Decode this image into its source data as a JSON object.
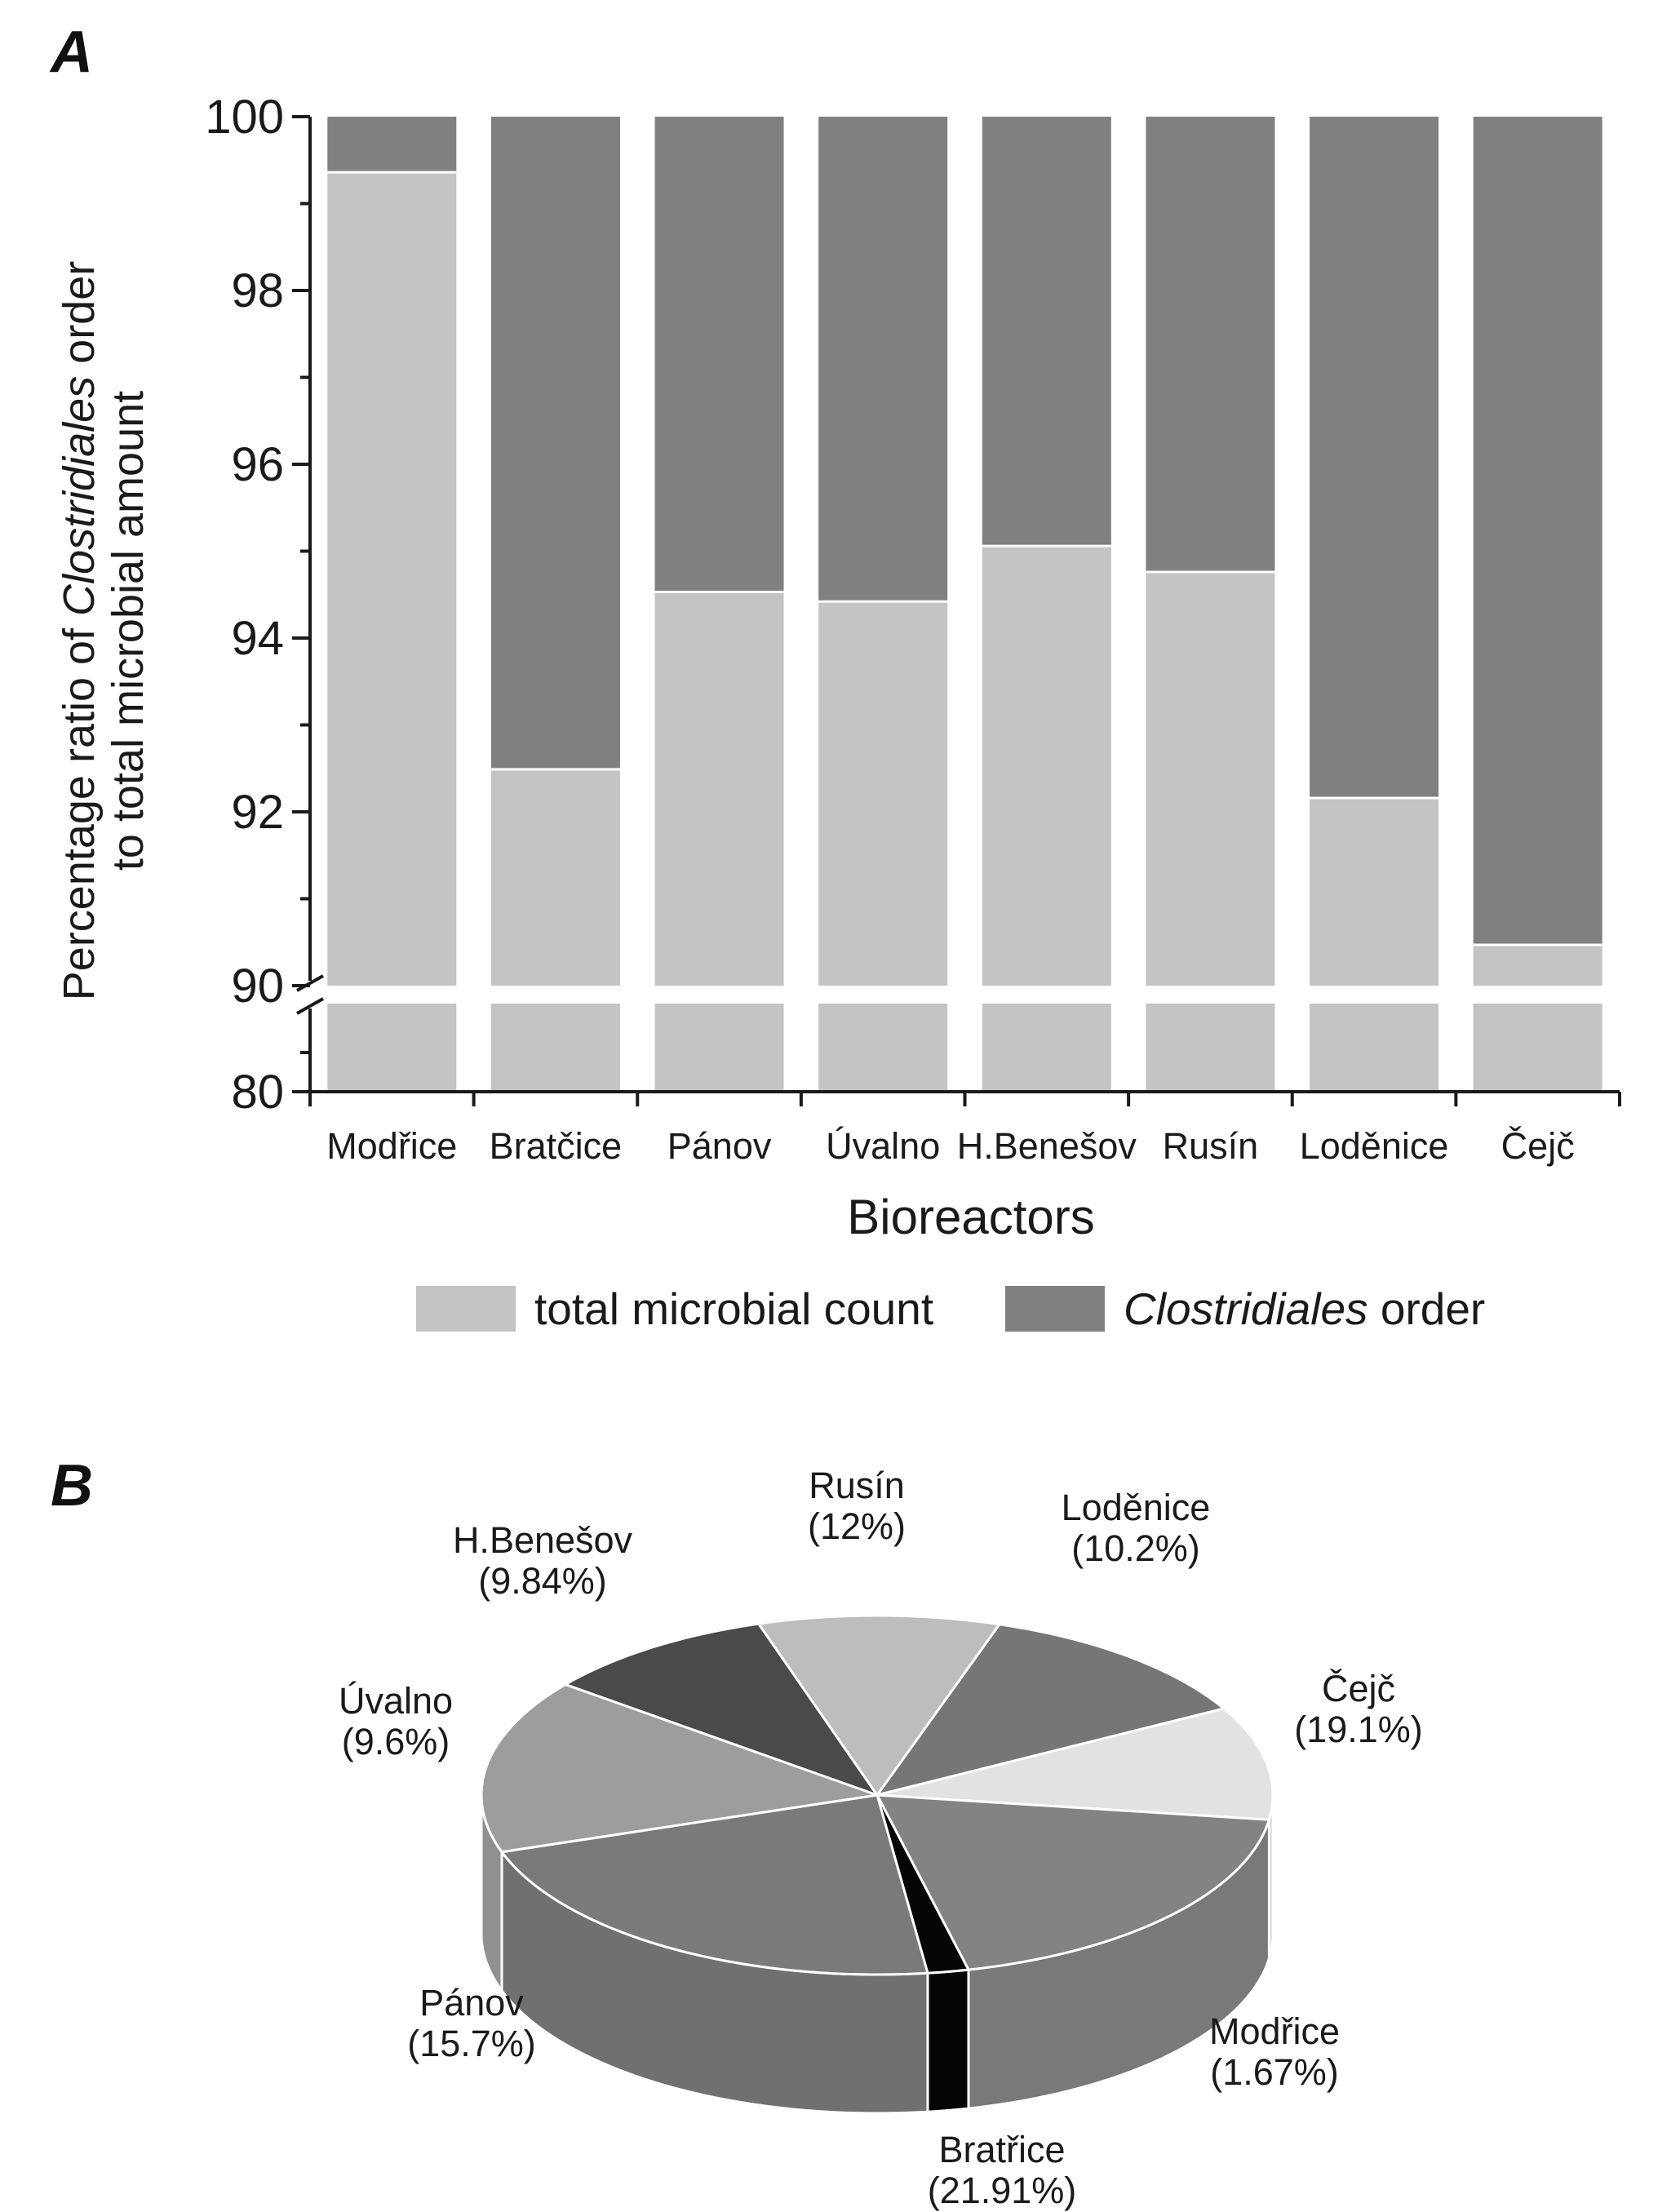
{
  "colors": {
    "total": "#c4c4c4",
    "clostridiales": "#808080",
    "axis": "#1a1a1a",
    "background": "#ffffff"
  },
  "panel_a_label": "A",
  "panel_b_label": "B",
  "chart_data": [
    {
      "type": "bar",
      "stacked": true,
      "title": "",
      "xlabel": "Bioreactors",
      "ylabel_parts": [
        "Percentage ratio of ",
        "Clostridiales",
        " order",
        "to total microbial amount"
      ],
      "categories": [
        "Modřice",
        "Bratčice",
        "Pánov",
        "Úvalno",
        "H.Benešov",
        "Rusín",
        "Loděnice",
        "Čejč"
      ],
      "ylim_upper": [
        90,
        100
      ],
      "ylim_lower": [
        80,
        90
      ],
      "axis_break_between": [
        80,
        90
      ],
      "yticks_upper": [
        "90",
        "92",
        "94",
        "96",
        "98",
        "100"
      ],
      "ytick_lower": "80",
      "series": [
        {
          "name": "total microbial count",
          "values": [
            99.36,
            92.49,
            94.53,
            94.42,
            95.06,
            94.76,
            92.16,
            90.47
          ]
        },
        {
          "name": "Clostridiales order",
          "values": [
            0.64,
            7.51,
            5.47,
            5.58,
            4.94,
            5.24,
            7.84,
            9.53
          ]
        }
      ],
      "legend": [
        {
          "text": "total microbial count"
        },
        {
          "text_italic": "Clostridiales",
          "text": " order"
        }
      ],
      "legend_position": "bottom"
    },
    {
      "type": "pie",
      "style": "3d",
      "slices": [
        {
          "name": "Rusín",
          "label": "(12%)",
          "value": 12,
          "color": "#767676"
        },
        {
          "name": "Loděnice",
          "label": "(10.2%)",
          "value": 10.2,
          "color": "#e2e2e2"
        },
        {
          "name": "Čejč",
          "label": "(19.1%)",
          "value": 19.1,
          "color": "#838383"
        },
        {
          "name": "Modřice",
          "label": "(1.67%)",
          "value": 1.67,
          "color": "#050505"
        },
        {
          "name": "Bratřice",
          "label": "(21.91%)",
          "value": 21.91,
          "color": "#7a7a7a"
        },
        {
          "name": "Pánov",
          "label": "(15.7%)",
          "value": 15.7,
          "color": "#9d9d9d"
        },
        {
          "name": "Úvalno",
          "label": "(9.6%)",
          "value": 9.6,
          "color": "#4a4a4a"
        },
        {
          "name": "H.Benešov",
          "label": "(9.84%)",
          "value": 9.84,
          "color": "#bdbdbd"
        }
      ]
    }
  ]
}
